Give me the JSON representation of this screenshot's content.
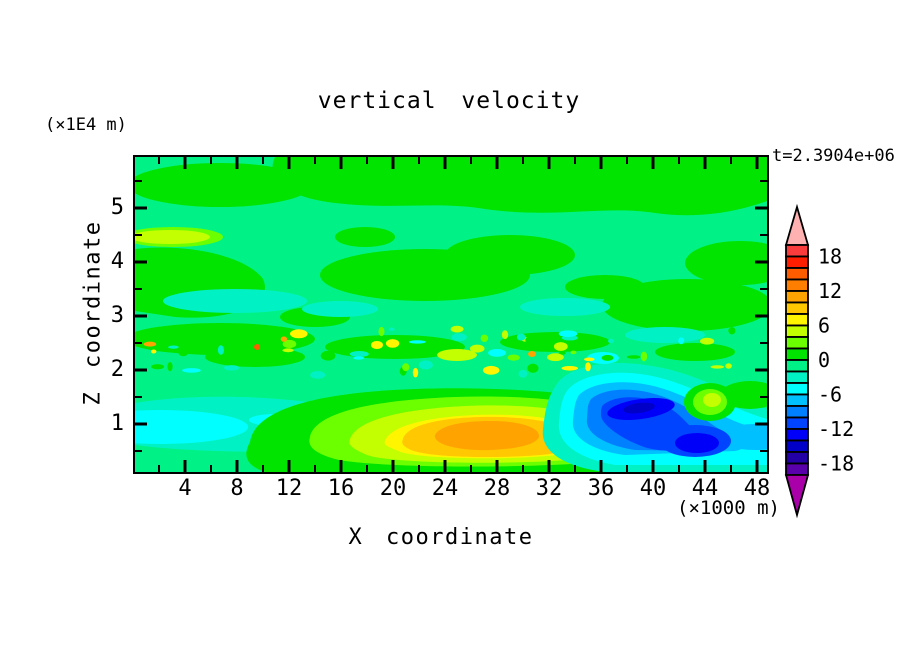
{
  "title": "vertical velocity",
  "time_label": "t=2.3904e+06",
  "y_unit_label": "(×1E4 m)",
  "x_unit_label": "(×1000 m)",
  "axes": {
    "x": {
      "label": "X coordinate",
      "ticks": [
        4,
        8,
        12,
        16,
        20,
        24,
        28,
        32,
        36,
        40,
        44,
        48
      ],
      "minor_tick_step": 2,
      "range": [
        0,
        48.8
      ]
    },
    "y": {
      "label": "Z coordinate",
      "ticks": [
        1,
        2,
        3,
        4,
        5
      ],
      "minor_tick_step": 0.5,
      "range": [
        0,
        5.9
      ]
    }
  },
  "colorbar": {
    "labels": [
      18,
      12,
      6,
      0,
      -6,
      -12,
      -18
    ],
    "segment_value_step": 2,
    "value_range": [
      -20,
      20
    ],
    "colors_top_to_bottom": [
      "#fa3c3c",
      "#ff1e00",
      "#ff5c00",
      "#ff7e00",
      "#ffa300",
      "#ffc800",
      "#fff500",
      "#c3ff00",
      "#6cff00",
      "#00e400",
      "#00f287",
      "#00f2c4",
      "#00ffff",
      "#00c0ff",
      "#0080ff",
      "#0044ff",
      "#0000fa",
      "#0000c8",
      "#2300a5",
      "#5a00aa"
    ],
    "over_range_color": "#ffb0b0",
    "under_range_color": "#aa00aa"
  },
  "chart_data": {
    "type": "heatmap",
    "subtype": "filled-contour",
    "title": "vertical velocity",
    "xlabel": "X coordinate (×1000 m)",
    "ylabel": "Z coordinate (×1E4 m)",
    "x_range": [
      0,
      48.8
    ],
    "y_range": [
      0,
      5.9
    ],
    "time_annotation": "t=2.3904e+06",
    "contour_interval": 2,
    "colorbar_ticks": [
      18,
      12,
      6,
      0,
      -6,
      -12,
      -18
    ],
    "colorbar_value_range": [
      -20,
      20
    ],
    "background_value_range": [
      -2,
      2
    ],
    "features": [
      {
        "name": "updraft-core",
        "x_km": [
          20,
          34
        ],
        "z_1e4m": [
          0.2,
          1.4
        ],
        "peak_value": 11,
        "description": "orange/gold/yellow concentric maximum near x=26, z=0.8"
      },
      {
        "name": "downdraft-core",
        "x_km": [
          36,
          47
        ],
        "z_1e4m": [
          0.3,
          1.5
        ],
        "peak_value": -15,
        "description": "blue concentric minimum with two cores near x=40 z=1.1 and x=44 z=0.5, extending to right edge"
      },
      {
        "name": "entrainment-speckle-band",
        "x_km": [
          0,
          48
        ],
        "z_1e4m": [
          1.8,
          2.4
        ],
        "value_range": [
          -6,
          12
        ],
        "description": "noisy layer of small green/cyan/yellow/orange speckles"
      },
      {
        "name": "cool-layer-bottom-left",
        "x_km": [
          0,
          20
        ],
        "z_1e4m": [
          0.3,
          1.3
        ],
        "value_range": [
          -6,
          -2
        ],
        "description": "turquoise band with cyan patch at left edge"
      },
      {
        "name": "chartreuse-spot-upper-left",
        "x_km": [
          0,
          7
        ],
        "z_1e4m": 4.4,
        "value": 5
      },
      {
        "name": "warm-spot-right-of-downdraft",
        "x_km": [
          43,
          46
        ],
        "z_1e4m": 1.5,
        "value": 5
      },
      {
        "name": "upper-region",
        "value_range": [
          -2,
          2
        ],
        "description": "patchwork of green (0..2) and spring-green (-2..0) amoeba shapes"
      }
    ]
  }
}
